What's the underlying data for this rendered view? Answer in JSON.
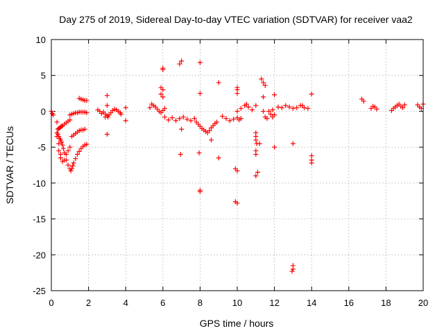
{
  "chart_data": {
    "type": "scatter",
    "title": "Day 275 of 2019, Sidereal Day-to-day VTEC variation (SDTVAR) for receiver vaa2",
    "xlabel": "GPS time / hours",
    "ylabel": "SDTVAR / TECUs",
    "xlim": [
      0,
      20
    ],
    "ylim": [
      -25,
      10
    ],
    "xticks": [
      0,
      2,
      4,
      6,
      8,
      10,
      12,
      14,
      16,
      18,
      20
    ],
    "yticks": [
      -25,
      -20,
      -15,
      -10,
      -5,
      0,
      5,
      10
    ],
    "xtick_labels": [
      "0",
      "2",
      "4",
      "6",
      "8",
      "10",
      "12",
      "14",
      "16",
      "18",
      "20"
    ],
    "ytick_labels": [
      "-25",
      "-20",
      "-15",
      "-10",
      "-5",
      "0",
      "5",
      "10"
    ],
    "grid": true,
    "marker": "plus",
    "color": "#ff0000",
    "series": [
      {
        "name": "SDTVAR",
        "x": [
          0.0,
          0.05,
          0.1,
          0.3,
          0.3,
          0.4,
          0.4,
          0.5,
          0.5,
          0.6,
          0.7,
          0.8,
          0.9,
          1.0,
          0.3,
          0.35,
          0.4,
          0.45,
          0.5,
          0.55,
          0.6,
          0.65,
          0.7,
          0.8,
          0.9,
          1.0,
          0.35,
          0.4,
          0.45,
          0.5,
          0.55,
          0.6,
          0.7,
          0.8,
          0.9,
          1.0,
          1.05,
          1.1,
          1.15,
          1.2,
          1.3,
          1.4,
          1.5,
          1.6,
          1.7,
          1.8,
          1.9,
          1.1,
          1.2,
          1.3,
          1.4,
          1.5,
          1.6,
          1.7,
          1.8,
          1.0,
          1.1,
          1.2,
          1.3,
          1.4,
          1.5,
          1.6,
          1.7,
          1.8,
          1.9,
          1.5,
          1.6,
          1.7,
          1.8,
          1.9,
          2.5,
          2.6,
          2.7,
          2.8,
          2.9,
          3.0,
          3.05,
          3.1,
          3.2,
          3.3,
          3.4,
          3.5,
          3.6,
          3.7,
          3.75,
          3.0,
          3.0,
          2.9,
          3.0,
          4.0,
          4.0,
          5.3,
          5.4,
          5.5,
          5.6,
          5.7,
          5.8,
          5.9,
          6.0,
          6.1,
          5.9,
          6.0,
          5.9,
          6.0,
          6.0,
          6.0,
          6.1,
          6.3,
          6.5,
          6.7,
          6.9,
          7.1,
          7.3,
          7.5,
          7.7,
          7.0,
          6.95,
          7.0,
          6.9,
          7.8,
          7.9,
          8.0,
          8.1,
          8.2,
          8.3,
          8.4,
          8.5,
          8.6,
          8.7,
          8.8,
          8.9,
          8.0,
          8.0,
          7.95,
          8.0,
          8.0,
          8.6,
          9.0,
          9.0,
          9.2,
          9.4,
          9.6,
          9.8,
          10.0,
          10.1,
          10.2,
          10.0,
          10.0,
          10.0,
          9.9,
          10.0,
          9.9,
          10.0,
          10.0,
          10.2,
          10.4,
          10.5,
          10.6,
          10.8,
          11.0,
          11.0,
          11.0,
          11.05,
          11.0,
          11.0,
          11.0,
          11.1,
          11.2,
          11.4,
          11.4,
          11.5,
          11.6,
          11.7,
          11.8,
          11.9,
          12.0,
          11.3,
          11.4,
          11.5,
          11.9,
          12.0,
          12.0,
          11.0,
          12.2,
          12.4,
          12.6,
          12.8,
          13.0,
          13.2,
          13.4,
          13.0,
          13.0,
          13.0,
          12.95,
          13.5,
          13.6,
          13.8,
          14.0,
          14.0,
          14.0,
          14.0,
          16.7,
          16.8,
          17.2,
          17.3,
          17.4,
          17.5,
          18.3,
          18.4,
          18.5,
          18.6,
          18.7,
          18.8,
          18.9,
          19.0,
          19.7,
          19.8,
          19.9,
          20.0
        ],
        "y": [
          0.0,
          -0.3,
          -0.5,
          -1.5,
          -3.5,
          -4.5,
          -5.5,
          -6.0,
          -6.5,
          -7.0,
          -6.8,
          -6.0,
          -5.5,
          -5.0,
          -3.0,
          -3.2,
          -3.5,
          -3.8,
          -4.0,
          -4.3,
          -4.7,
          -5.2,
          -5.8,
          -6.8,
          -7.5,
          -8.0,
          -2.5,
          -2.4,
          -2.3,
          -2.2,
          -2.1,
          -2.0,
          -1.8,
          -1.6,
          -1.4,
          -1.2,
          -8.3,
          -8.0,
          -7.6,
          -7.2,
          -6.6,
          -6.0,
          -5.6,
          -5.2,
          -4.9,
          -4.7,
          -4.6,
          -3.5,
          -3.3,
          -3.1,
          -2.9,
          -2.7,
          -2.6,
          -2.6,
          -2.5,
          -0.5,
          -0.4,
          -0.3,
          -0.2,
          -0.2,
          -0.1,
          -0.1,
          -0.1,
          -0.1,
          -0.2,
          1.8,
          1.7,
          1.6,
          1.5,
          1.5,
          0.2,
          0.0,
          -0.3,
          -0.1,
          -0.4,
          -0.6,
          -0.8,
          -0.5,
          -0.2,
          0.1,
          0.3,
          0.2,
          0.0,
          -0.2,
          -0.4,
          2.2,
          0.8,
          -0.8,
          -3.2,
          0.5,
          -1.3,
          0.5,
          1.0,
          0.8,
          0.6,
          0.3,
          0.0,
          -0.2,
          0.1,
          0.4,
          3.3,
          3.0,
          2.4,
          2.0,
          6.0,
          5.8,
          -0.8,
          -1.2,
          -0.9,
          -1.3,
          -1.0,
          -0.8,
          -1.1,
          -1.3,
          -1.0,
          -2.5,
          -6.0,
          7.0,
          6.6,
          -1.5,
          -1.8,
          -2.1,
          -2.4,
          -2.6,
          -2.8,
          -3.0,
          -2.7,
          -2.3,
          -2.0,
          -1.7,
          -1.5,
          6.8,
          2.5,
          -5.8,
          -11.0,
          -11.2,
          -4.0,
          4.0,
          -6.5,
          -0.7,
          -1.0,
          -1.3,
          -1.1,
          -0.9,
          -1.2,
          -1.0,
          3.3,
          3.0,
          2.5,
          -8.0,
          -8.3,
          -12.6,
          -12.8,
          0.0,
          0.4,
          0.8,
          1.0,
          0.6,
          0.2,
          -3.0,
          -3.5,
          -4.0,
          -4.5,
          -5.5,
          -6.0,
          -9.0,
          -8.5,
          -4.5,
          2.0,
          0.0,
          -0.8,
          -1.0,
          0.0,
          -0.4,
          0.2,
          -0.5,
          4.5,
          4.0,
          3.6,
          -0.8,
          2.3,
          -5.0,
          0.8,
          0.6,
          0.5,
          0.8,
          0.6,
          0.4,
          0.5,
          0.8,
          -4.5,
          -21.5,
          -22.0,
          -22.3,
          0.8,
          0.5,
          0.4,
          2.4,
          -6.2,
          -6.8,
          -7.2,
          1.7,
          1.4,
          0.4,
          0.7,
          0.6,
          0.3,
          0.1,
          0.4,
          0.6,
          0.8,
          1.0,
          0.7,
          0.5,
          0.9,
          0.9,
          0.6,
          0.4,
          1.0
        ]
      }
    ]
  }
}
